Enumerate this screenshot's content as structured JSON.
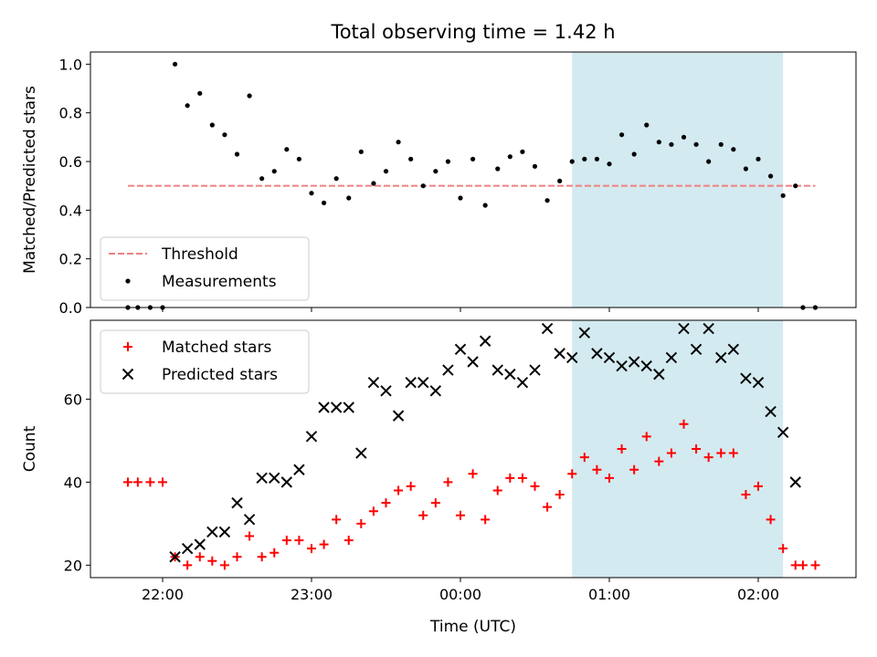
{
  "chart_data": {
    "title": "Total observing time = 1.42 h",
    "xlabel": "Time (UTC)",
    "x_ticks": [
      "22:00",
      "23:00",
      "00:00",
      "01:00",
      "02:00"
    ],
    "x_unit": "minutes_since_22:00_UTC",
    "shaded_region": {
      "x_start_min": 165,
      "x_end_min": 250,
      "color": "#d3eaf0"
    },
    "panels": [
      {
        "type": "scatter",
        "ylabel": "Matched/Predicted stars",
        "ylim": [
          0,
          1.05
        ],
        "yticks": [
          "0.0",
          "0.2",
          "0.4",
          "0.6",
          "0.8",
          "1.0"
        ],
        "legend": {
          "placement": "lower-left",
          "entries": [
            "Threshold",
            "Measurements"
          ]
        },
        "threshold": {
          "name": "Threshold",
          "value": 0.5,
          "x_range": [
            -14,
            263
          ],
          "color": "#f08080",
          "style": "dashed"
        },
        "series": [
          {
            "name": "Measurements",
            "marker": "dot",
            "color": "#000000",
            "points": [
              [
                -14,
                0.0
              ],
              [
                -10,
                0.0
              ],
              [
                -5,
                0.0
              ],
              [
                0,
                0.0
              ],
              [
                5,
                1.0
              ],
              [
                10,
                0.83
              ],
              [
                15,
                0.88
              ],
              [
                20,
                0.75
              ],
              [
                25,
                0.71
              ],
              [
                30,
                0.63
              ],
              [
                35,
                0.87
              ],
              [
                40,
                0.53
              ],
              [
                45,
                0.56
              ],
              [
                50,
                0.65
              ],
              [
                55,
                0.61
              ],
              [
                60,
                0.47
              ],
              [
                65,
                0.43
              ],
              [
                70,
                0.53
              ],
              [
                75,
                0.45
              ],
              [
                80,
                0.64
              ],
              [
                85,
                0.51
              ],
              [
                90,
                0.56
              ],
              [
                95,
                0.68
              ],
              [
                100,
                0.61
              ],
              [
                105,
                0.5
              ],
              [
                110,
                0.56
              ],
              [
                115,
                0.6
              ],
              [
                120,
                0.45
              ],
              [
                125,
                0.61
              ],
              [
                130,
                0.42
              ],
              [
                135,
                0.57
              ],
              [
                140,
                0.62
              ],
              [
                145,
                0.64
              ],
              [
                150,
                0.58
              ],
              [
                155,
                0.44
              ],
              [
                160,
                0.52
              ],
              [
                165,
                0.6
              ],
              [
                170,
                0.61
              ],
              [
                175,
                0.61
              ],
              [
                180,
                0.59
              ],
              [
                185,
                0.71
              ],
              [
                190,
                0.63
              ],
              [
                195,
                0.75
              ],
              [
                200,
                0.68
              ],
              [
                205,
                0.67
              ],
              [
                210,
                0.7
              ],
              [
                215,
                0.67
              ],
              [
                220,
                0.6
              ],
              [
                225,
                0.67
              ],
              [
                230,
                0.65
              ],
              [
                235,
                0.57
              ],
              [
                240,
                0.61
              ],
              [
                245,
                0.54
              ],
              [
                250,
                0.46
              ],
              [
                255,
                0.5
              ],
              [
                258,
                0.0
              ],
              [
                263,
                0.0
              ]
            ]
          }
        ]
      },
      {
        "type": "scatter",
        "ylabel": "Count",
        "ylim": [
          17,
          79
        ],
        "yticks": [
          "20",
          "40",
          "60"
        ],
        "legend": {
          "placement": "upper-left",
          "entries": [
            "Matched stars",
            "Predicted stars"
          ]
        },
        "series": [
          {
            "name": "Matched stars",
            "marker": "plus",
            "color": "#ff0000",
            "points": [
              [
                -14,
                40
              ],
              [
                -10,
                40
              ],
              [
                -5,
                40
              ],
              [
                0,
                40
              ],
              [
                5,
                22
              ],
              [
                10,
                20
              ],
              [
                15,
                22
              ],
              [
                20,
                21
              ],
              [
                25,
                20
              ],
              [
                30,
                22
              ],
              [
                35,
                27
              ],
              [
                40,
                22
              ],
              [
                45,
                23
              ],
              [
                50,
                26
              ],
              [
                55,
                26
              ],
              [
                60,
                24
              ],
              [
                65,
                25
              ],
              [
                70,
                31
              ],
              [
                75,
                26
              ],
              [
                80,
                30
              ],
              [
                85,
                33
              ],
              [
                90,
                35
              ],
              [
                95,
                38
              ],
              [
                100,
                39
              ],
              [
                105,
                32
              ],
              [
                110,
                35
              ],
              [
                115,
                40
              ],
              [
                120,
                32
              ],
              [
                125,
                42
              ],
              [
                130,
                31
              ],
              [
                135,
                38
              ],
              [
                140,
                41
              ],
              [
                145,
                41
              ],
              [
                150,
                39
              ],
              [
                155,
                34
              ],
              [
                160,
                37
              ],
              [
                165,
                42
              ],
              [
                170,
                46
              ],
              [
                175,
                43
              ],
              [
                180,
                41
              ],
              [
                185,
                48
              ],
              [
                190,
                43
              ],
              [
                195,
                51
              ],
              [
                200,
                45
              ],
              [
                205,
                47
              ],
              [
                210,
                54
              ],
              [
                215,
                48
              ],
              [
                220,
                46
              ],
              [
                225,
                47
              ],
              [
                230,
                47
              ],
              [
                235,
                37
              ],
              [
                240,
                39
              ],
              [
                245,
                31
              ],
              [
                250,
                24
              ],
              [
                255,
                20
              ],
              [
                258,
                20
              ],
              [
                263,
                20
              ]
            ]
          },
          {
            "name": "Predicted stars",
            "marker": "x",
            "color": "#000000",
            "points": [
              [
                5,
                22
              ],
              [
                10,
                24
              ],
              [
                15,
                25
              ],
              [
                20,
                28
              ],
              [
                25,
                28
              ],
              [
                30,
                35
              ],
              [
                35,
                31
              ],
              [
                40,
                41
              ],
              [
                45,
                41
              ],
              [
                50,
                40
              ],
              [
                55,
                43
              ],
              [
                60,
                51
              ],
              [
                65,
                58
              ],
              [
                70,
                58
              ],
              [
                75,
                58
              ],
              [
                80,
                47
              ],
              [
                85,
                64
              ],
              [
                90,
                62
              ],
              [
                95,
                56
              ],
              [
                100,
                64
              ],
              [
                105,
                64
              ],
              [
                110,
                62
              ],
              [
                115,
                67
              ],
              [
                120,
                72
              ],
              [
                125,
                69
              ],
              [
                130,
                74
              ],
              [
                135,
                67
              ],
              [
                140,
                66
              ],
              [
                145,
                64
              ],
              [
                150,
                67
              ],
              [
                155,
                77
              ],
              [
                160,
                71
              ],
              [
                165,
                70
              ],
              [
                170,
                76
              ],
              [
                175,
                71
              ],
              [
                180,
                70
              ],
              [
                185,
                68
              ],
              [
                190,
                69
              ],
              [
                195,
                68
              ],
              [
                200,
                66
              ],
              [
                205,
                70
              ],
              [
                210,
                77
              ],
              [
                215,
                72
              ],
              [
                220,
                77
              ],
              [
                225,
                70
              ],
              [
                230,
                72
              ],
              [
                235,
                65
              ],
              [
                240,
                64
              ],
              [
                245,
                57
              ],
              [
                250,
                52
              ],
              [
                255,
                40
              ]
            ]
          }
        ]
      }
    ]
  }
}
